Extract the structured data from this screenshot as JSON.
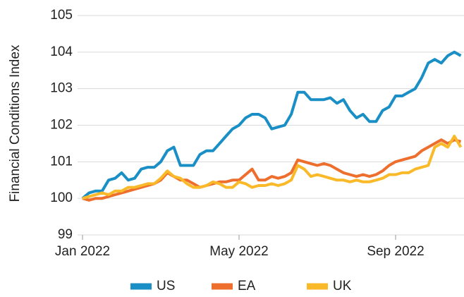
{
  "chart_data": {
    "type": "line",
    "ylabel": "Financial Conditions Index",
    "categories": [
      "Jan 2022",
      null,
      null,
      null,
      null,
      null,
      null,
      null,
      null,
      null,
      null,
      null,
      null,
      null,
      null,
      null,
      null,
      null,
      null,
      null,
      null,
      null,
      null,
      null,
      "May 2022",
      null,
      null,
      null,
      null,
      null,
      null,
      null,
      null,
      null,
      null,
      null,
      null,
      null,
      null,
      null,
      null,
      null,
      null,
      null,
      null,
      null,
      null,
      null,
      "Sep 2022",
      null,
      null,
      null,
      null,
      null,
      null,
      null,
      null,
      null,
      null
    ],
    "series": [
      {
        "name": "US",
        "color": "#1a8fc5",
        "values": [
          100.0,
          100.15,
          100.2,
          100.2,
          100.5,
          100.55,
          100.7,
          100.5,
          100.55,
          100.8,
          100.85,
          100.85,
          101.0,
          101.3,
          101.4,
          100.9,
          100.9,
          100.9,
          101.2,
          101.3,
          101.3,
          101.5,
          101.7,
          101.9,
          102.0,
          102.2,
          102.3,
          102.3,
          102.2,
          101.9,
          101.95,
          102.0,
          102.3,
          102.9,
          102.9,
          102.7,
          102.7,
          102.7,
          102.75,
          102.6,
          102.7,
          102.4,
          102.2,
          102.3,
          102.1,
          102.1,
          102.4,
          102.5,
          102.8,
          102.8,
          102.9,
          103.0,
          103.3,
          103.7,
          103.8,
          103.7,
          103.9,
          104.0,
          103.9
        ]
      },
      {
        "name": "EA",
        "color": "#ee6f2d",
        "values": [
          100.0,
          99.95,
          100.0,
          100.0,
          100.05,
          100.1,
          100.15,
          100.2,
          100.25,
          100.3,
          100.35,
          100.4,
          100.5,
          100.7,
          100.6,
          100.5,
          100.5,
          100.4,
          100.3,
          100.35,
          100.4,
          100.45,
          100.45,
          100.5,
          100.5,
          100.65,
          100.8,
          100.5,
          100.5,
          100.6,
          100.55,
          100.6,
          100.7,
          101.05,
          101.0,
          100.95,
          100.9,
          100.95,
          100.9,
          100.8,
          100.7,
          100.65,
          100.6,
          100.65,
          100.6,
          100.65,
          100.75,
          100.9,
          101.0,
          101.05,
          101.1,
          101.15,
          101.3,
          101.4,
          101.5,
          101.6,
          101.5,
          101.6,
          101.55
        ]
      },
      {
        "name": "UK",
        "color": "#f9b928",
        "values": [
          100.0,
          100.05,
          100.1,
          100.15,
          100.1,
          100.2,
          100.2,
          100.3,
          100.3,
          100.35,
          100.4,
          100.4,
          100.55,
          100.75,
          100.6,
          100.55,
          100.4,
          100.3,
          100.3,
          100.35,
          100.45,
          100.4,
          100.3,
          100.3,
          100.45,
          100.4,
          100.3,
          100.35,
          100.35,
          100.4,
          100.35,
          100.4,
          100.5,
          100.9,
          100.8,
          100.6,
          100.65,
          100.6,
          100.55,
          100.5,
          100.5,
          100.45,
          100.5,
          100.45,
          100.45,
          100.5,
          100.55,
          100.65,
          100.65,
          100.7,
          100.7,
          100.8,
          100.85,
          100.9,
          101.4,
          101.5,
          101.4,
          101.7,
          101.4
        ]
      }
    ],
    "ylim": [
      99,
      105
    ],
    "yticks": [
      99,
      100,
      101,
      102,
      103,
      104,
      105
    ],
    "grid": true,
    "legend": "bottom"
  }
}
